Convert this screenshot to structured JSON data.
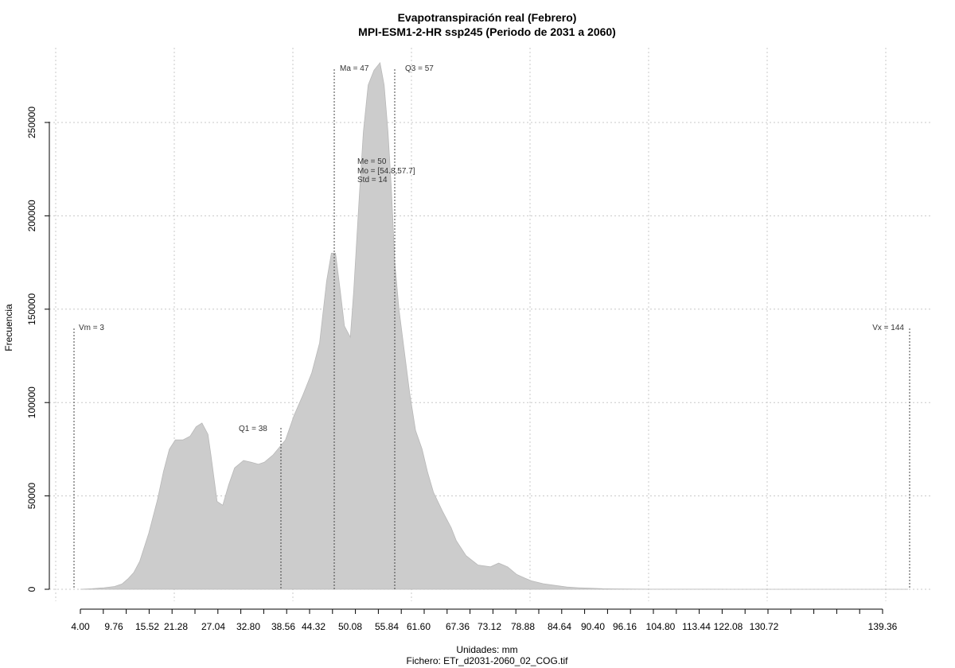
{
  "chart_data": {
    "type": "area",
    "title": "Evapotranspiración real (Febrero)",
    "subtitle": "MPI-ESM1-2-HR ssp245 (Periodo de 2031 a 2060)",
    "xlabel": "Unidades: mm",
    "file_label": "Fichero: ETr_d2031-2060_02_COG.tif",
    "ylabel": "Frecuencia",
    "xlim": [
      4.0,
      143.5
    ],
    "ylim": [
      0,
      285000
    ],
    "x_ticks": [
      "4.00",
      "9.76",
      "15.52",
      "21.28",
      "27.04",
      "32.80",
      "38.56",
      "44.32",
      "50.08",
      "55.84",
      "61.60",
      "67.36",
      "73.12",
      "78.88",
      "84.64",
      "90.40",
      "96.16",
      "104.80",
      "113.44",
      "122.08",
      "130.72",
      "139.36"
    ],
    "y_ticks": [
      "0",
      "50000",
      "100000",
      "150000",
      "200000",
      "250000"
    ],
    "y_tick_values": [
      0,
      50000,
      100000,
      150000,
      250000,
      200000
    ],
    "fill_color": "#cccccc",
    "grid": true,
    "series": [
      {
        "x": [
          4.0,
          6.0,
          8.0,
          9.76,
          11.0,
          12.0,
          13.0,
          14.0,
          15.52,
          17.0,
          18.0,
          19.0,
          20.0,
          21.0,
          21.28,
          22.5,
          23.5,
          24.5,
          25.5,
          26.0,
          27.04,
          28.0,
          29.0,
          30.0,
          31.5,
          32.8,
          34.0,
          35.0,
          36.5,
          38.56,
          40.0,
          41.5,
          43.0,
          44.32,
          45.5,
          46.3,
          47.0,
          47.8,
          48.5,
          49.5,
          50.08,
          51.0,
          51.7,
          52.5,
          53.5,
          54.5,
          55.2,
          55.84,
          56.4,
          57.0,
          57.7,
          58.5,
          59.5,
          60.5,
          61.6,
          62.5,
          63.5,
          65.0,
          66.5,
          67.36,
          69.0,
          71.0,
          73.12,
          74.5,
          76.0,
          77.5,
          78.88,
          80.0,
          82.0,
          84.64,
          86.0,
          88.0,
          90.4,
          92.0,
          94.0,
          96.16,
          100.0,
          104.8,
          113.44,
          122.08,
          130.72,
          139.36,
          143.5
        ],
        "values": [
          0,
          300,
          800,
          1500,
          2800,
          5500,
          9000,
          15000,
          30000,
          48000,
          63000,
          75000,
          80000,
          80000,
          80000,
          82000,
          87000,
          89000,
          83000,
          72000,
          47000,
          45000,
          56000,
          65000,
          69000,
          68000,
          67000,
          68000,
          72000,
          80000,
          93000,
          104000,
          116000,
          132000,
          165000,
          180000,
          180000,
          160000,
          141000,
          135000,
          160000,
          210000,
          245000,
          270000,
          278000,
          282000,
          270000,
          245000,
          215000,
          175000,
          150000,
          130000,
          105000,
          85000,
          75000,
          63000,
          52000,
          42000,
          33000,
          26000,
          18000,
          13000,
          12000,
          14000,
          12000,
          8000,
          6000,
          4500,
          3000,
          1800,
          1200,
          800,
          500,
          300,
          200,
          120,
          60,
          30,
          10,
          5,
          3,
          1,
          0
        ]
      }
    ],
    "stats": {
      "vm": "Vm = 3",
      "q1": "Q1 = 38",
      "ma": "Ma = 47",
      "q3": "Q3 = 57",
      "me": "Me = 50",
      "mo": "Mo = [54.8,57.7]",
      "std": "Std = 14",
      "vx": "Vx = 144"
    },
    "markers": {
      "vm": 3,
      "q1": 38,
      "ma": 47,
      "q3": 57,
      "vx": 144
    }
  }
}
